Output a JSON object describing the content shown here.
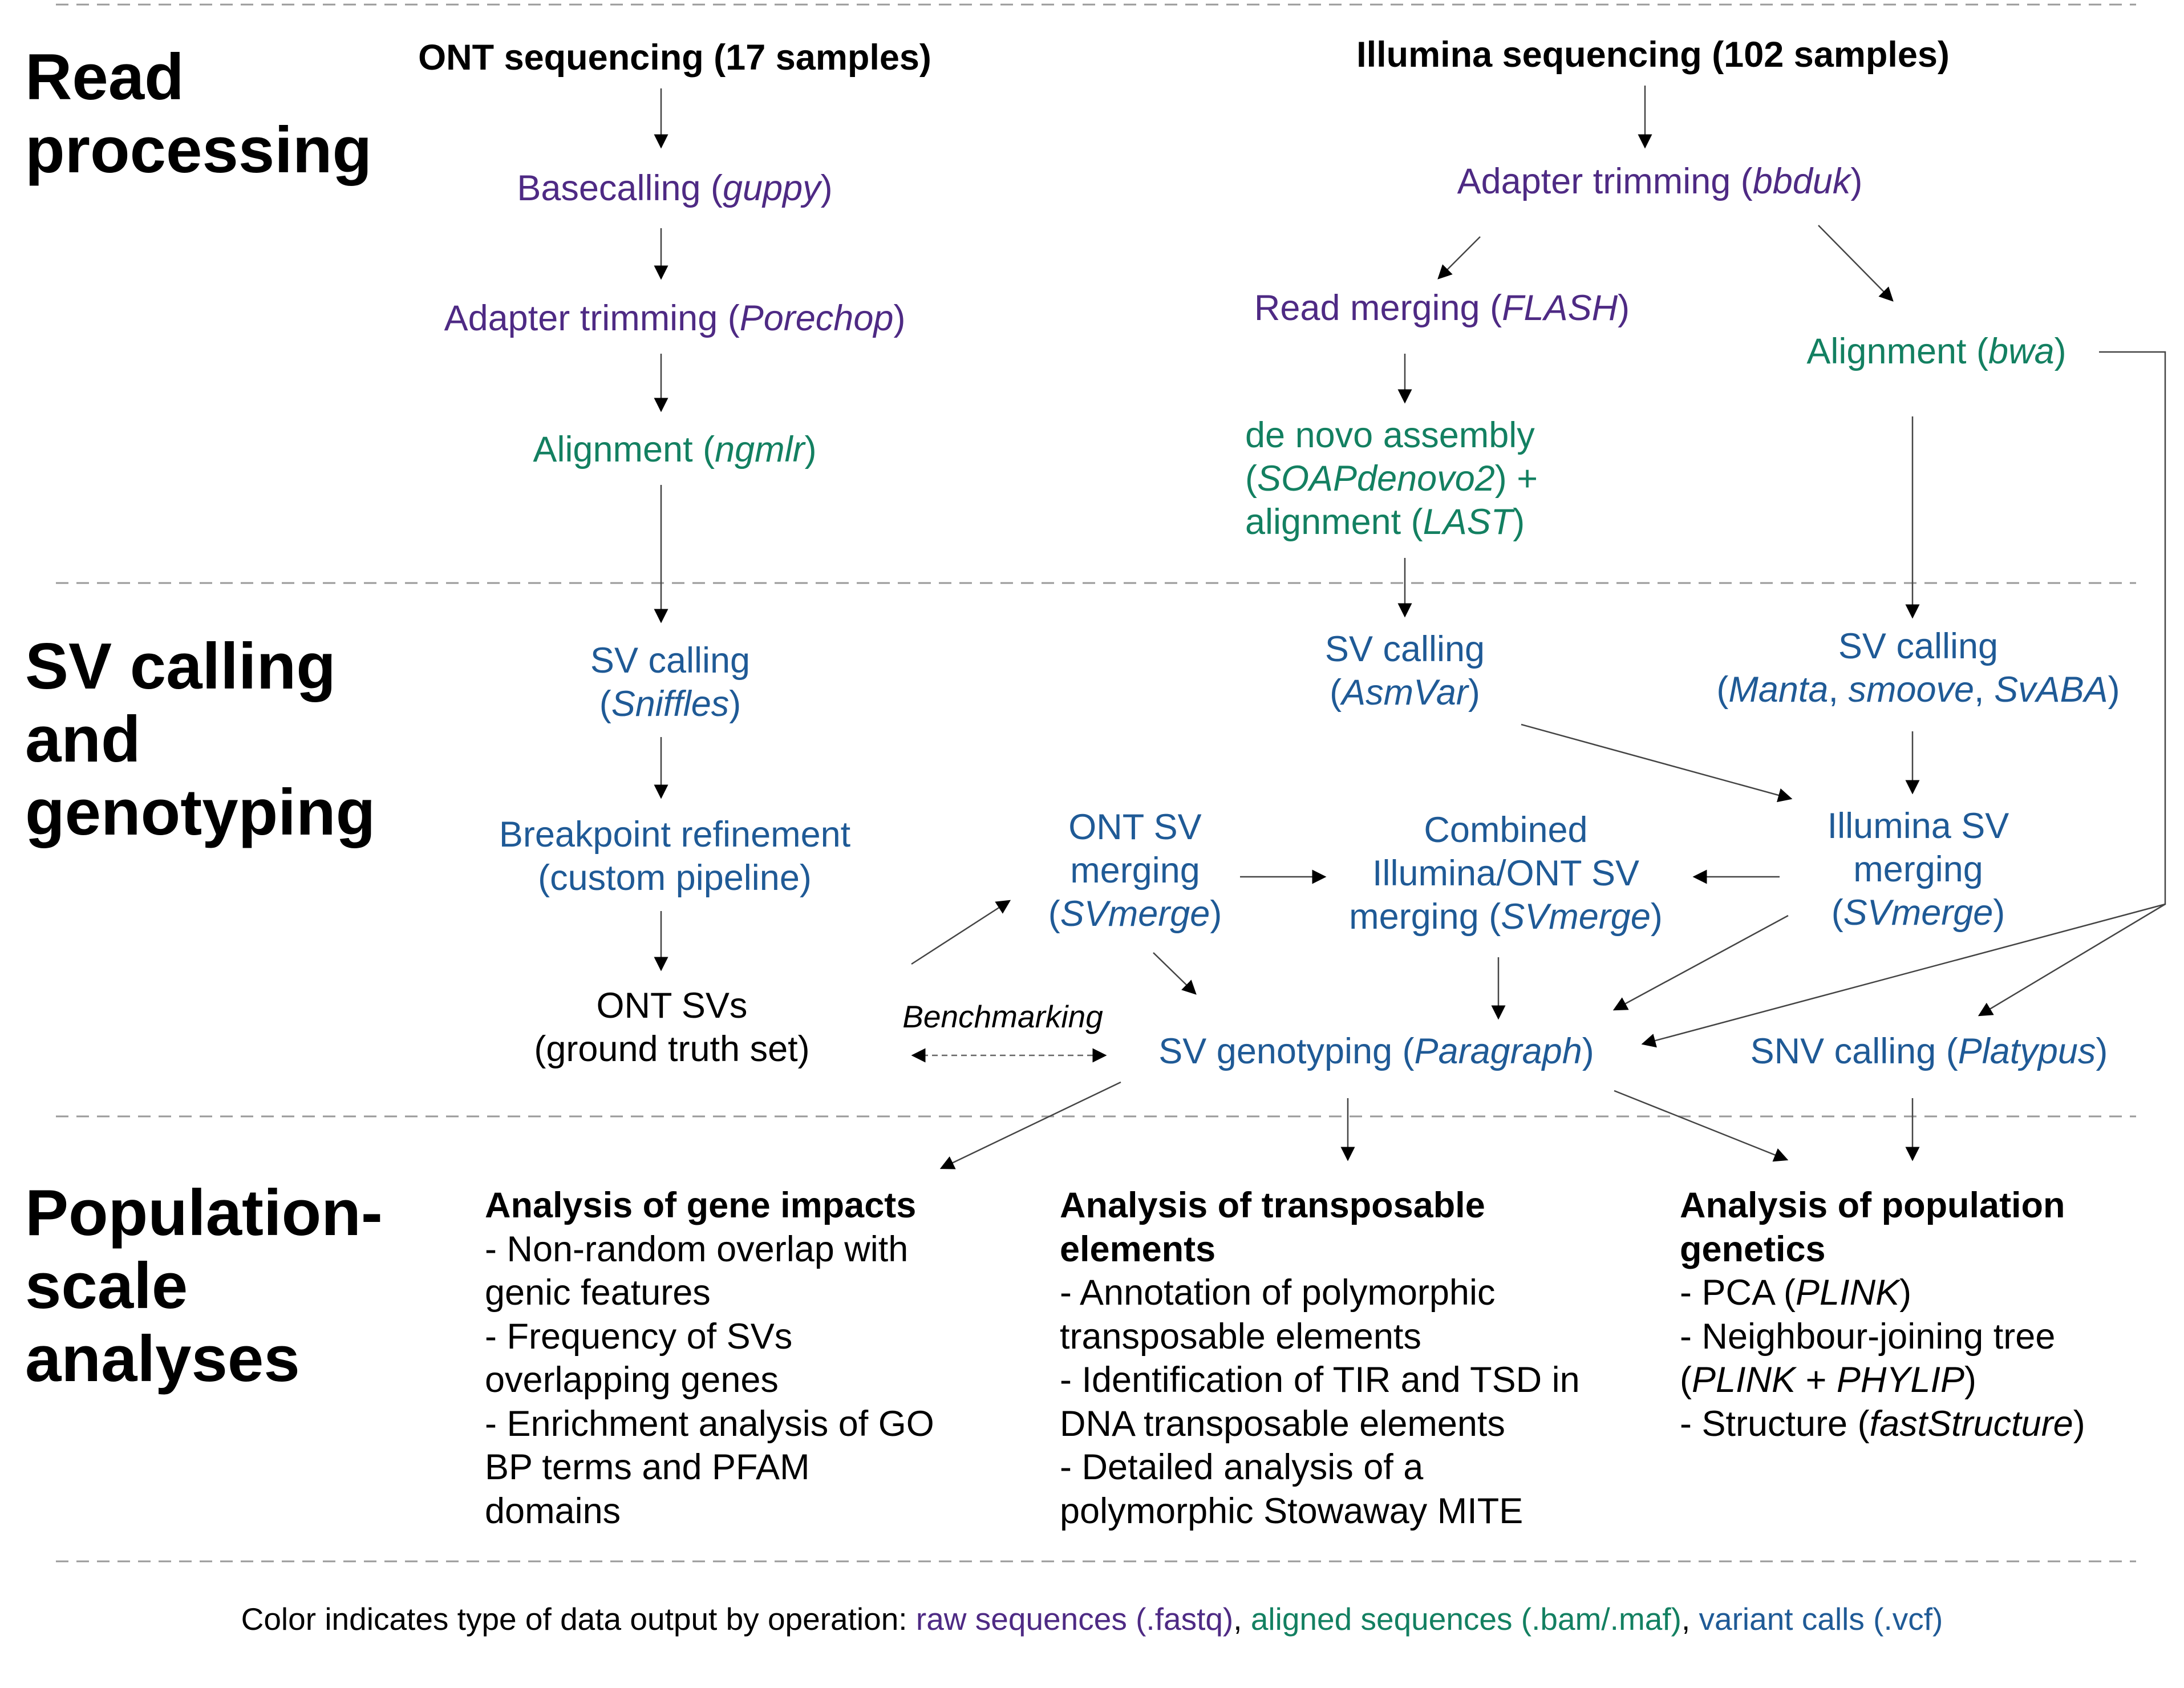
{
  "sections": {
    "read_processing": "Read\nprocessing",
    "sv_calling": "SV calling\nand\ngenotyping",
    "population": "Population-\nscale\nanalyses"
  },
  "headers": {
    "ont": "ONT sequencing (17 samples)",
    "illumina": "Illumina sequencing (102 samples)"
  },
  "nodes": {
    "basecalling": {
      "pre": "Basecalling (",
      "tool": "guppy",
      "post": ")"
    },
    "ont_trim": {
      "pre": "Adapter trimming (",
      "tool": "Porechop",
      "post": ")"
    },
    "ont_align": {
      "pre": "Alignment (",
      "tool": "ngmlr",
      "post": ")"
    },
    "ill_trim": {
      "pre": "Adapter trimming (",
      "tool": "bbduk",
      "post": ")"
    },
    "read_merge": {
      "pre": "Read merging (",
      "tool": "FLASH",
      "post": ")"
    },
    "bwa_align": {
      "pre": "Alignment (",
      "tool": "bwa",
      "post": ")"
    },
    "denovo": {
      "l1": "de novo assembly",
      "l2_pre": "(",
      "l2_tool": "SOAPdenovo2",
      "l2_post": ") +",
      "l3_pre": "alignment (",
      "l3_tool": "LAST",
      "l3_post": ")"
    },
    "sniffles": {
      "l1": "SV calling",
      "l2_pre": "(",
      "l2_tool": "Sniffles",
      "l2_post": ")"
    },
    "asmvar": {
      "l1": "SV calling",
      "l2_pre": "(",
      "l2_tool": "AsmVar",
      "l2_post": ")"
    },
    "manta": {
      "l1": "SV calling",
      "l2_pre": "(",
      "t1": "Manta",
      "s1": ", ",
      "t2": "smoove",
      "s2": ", ",
      "t3": "SvABA",
      "l2_post": ")"
    },
    "breakpoint": {
      "l1": "Breakpoint refinement",
      "l2": "(custom pipeline)"
    },
    "ont_merge": {
      "l1": "ONT SV",
      "l2": "merging",
      "l3_pre": "(",
      "l3_tool": "SVmerge",
      "l3_post": ")"
    },
    "combined_merge": {
      "l1": "Combined",
      "l2": "Illumina/ONT SV",
      "l3_pre": "merging (",
      "l3_tool": "SVmerge",
      "l3_post": ")"
    },
    "ill_merge": {
      "l1": "Illumina SV",
      "l2": "merging",
      "l3_pre": "(",
      "l3_tool": "SVmerge",
      "l3_post": ")"
    },
    "ont_svs": {
      "l1": "ONT SVs",
      "l2": "(ground truth set)"
    },
    "genotyping": {
      "pre": "SV genotyping (",
      "tool": "Paragraph",
      "post": ")"
    },
    "snv": {
      "pre": "SNV calling (",
      "tool": "Platypus",
      "post": ")"
    }
  },
  "benchmarking": "Benchmarking",
  "analyses": {
    "gene": {
      "title": "Analysis of gene impacts",
      "items": [
        "- Non-random overlap with",
        "genic features",
        "- Frequency of SVs",
        "overlapping genes",
        "- Enrichment analysis of GO",
        "BP terms and PFAM",
        "domains"
      ]
    },
    "te": {
      "title_l1": "Analysis of transposable",
      "title_l2": "elements",
      "items": [
        "- Annotation of polymorphic",
        "transposable elements",
        "- Identification of TIR and TSD in",
        "DNA transposable elements",
        "- Detailed analysis of a",
        "polymorphic Stowaway MITE"
      ]
    },
    "popgen": {
      "title_l1": "Analysis of population",
      "title_l2": "genetics",
      "pca_pre": "- PCA (",
      "pca_tool": "PLINK",
      "pca_post": ")",
      "nj_l1": "- Neighbour-joining tree",
      "nj_pre": "(",
      "nj_t1": "PLINK",
      "nj_mid": " + ",
      "nj_t2": "PHYLIP",
      "nj_post": ")",
      "st_pre": "- Structure (",
      "st_tool": "fastStructure",
      "st_post": ")"
    }
  },
  "footer": {
    "prefix": "Color indicates type of data output by operation: ",
    "raw": "raw sequences (.fastq)",
    "sep1": ", ",
    "aligned": "aligned sequences (.bam/.maf)",
    "sep2": ", ",
    "variant": "variant calls (.vcf)"
  },
  "colors": {
    "raw": "#4e2a84",
    "aligned": "#138061",
    "variant": "#1f5a96",
    "line": "#444444",
    "divider": "#9a9a9a"
  }
}
